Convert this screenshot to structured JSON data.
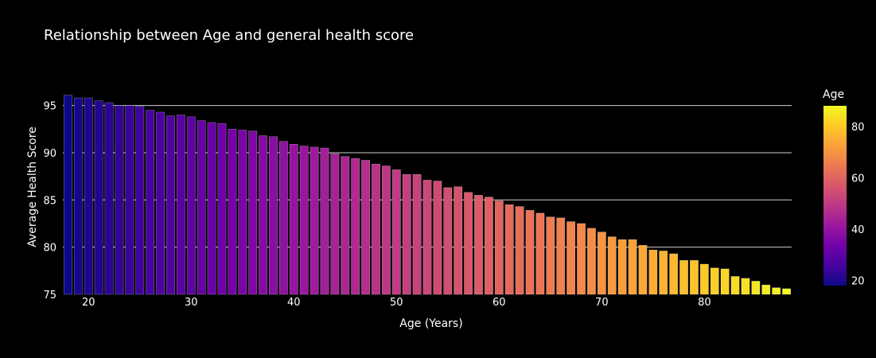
{
  "chart_data": {
    "type": "bar",
    "title": "Relationship between Age and general health score",
    "xlabel": "Age (Years)",
    "ylabel": "Average Health Score",
    "xlim": [
      17.5,
      88.5
    ],
    "ylim": [
      75,
      98
    ],
    "x_ticks": [
      20,
      30,
      40,
      50,
      60,
      70,
      80
    ],
    "y_ticks": [
      75,
      80,
      85,
      90,
      95
    ],
    "grid": true,
    "colorbar": {
      "title": "Age",
      "range": [
        18,
        88
      ],
      "ticks": [
        20,
        40,
        60,
        80
      ],
      "colorscale": "plasma"
    },
    "x": [
      18,
      19,
      20,
      21,
      22,
      23,
      24,
      25,
      26,
      27,
      28,
      29,
      30,
      31,
      32,
      33,
      34,
      35,
      36,
      37,
      38,
      39,
      40,
      41,
      42,
      43,
      44,
      45,
      46,
      47,
      48,
      49,
      50,
      51,
      52,
      53,
      54,
      55,
      56,
      57,
      58,
      59,
      60,
      61,
      62,
      63,
      64,
      65,
      66,
      67,
      68,
      69,
      70,
      71,
      72,
      73,
      74,
      75,
      76,
      77,
      78,
      79,
      80,
      81,
      82,
      83,
      84,
      85,
      86,
      87,
      88
    ],
    "values": [
      96.1,
      95.8,
      95.8,
      95.5,
      95.3,
      95.0,
      95.0,
      94.9,
      94.5,
      94.3,
      93.9,
      94.0,
      93.8,
      93.4,
      93.2,
      93.1,
      92.5,
      92.4,
      92.3,
      91.8,
      91.7,
      91.2,
      90.9,
      90.7,
      90.6,
      90.5,
      89.9,
      89.6,
      89.4,
      89.2,
      88.8,
      88.6,
      88.2,
      87.7,
      87.7,
      87.1,
      87.0,
      86.3,
      86.4,
      85.8,
      85.5,
      85.3,
      84.9,
      84.5,
      84.3,
      83.9,
      83.6,
      83.2,
      83.1,
      82.7,
      82.5,
      82.0,
      81.6,
      81.1,
      80.8,
      80.8,
      80.2,
      79.7,
      79.6,
      79.3,
      78.6,
      78.6,
      78.2,
      77.8,
      77.7,
      76.9,
      76.7,
      76.4,
      76.0,
      75.7,
      75.6
    ]
  }
}
